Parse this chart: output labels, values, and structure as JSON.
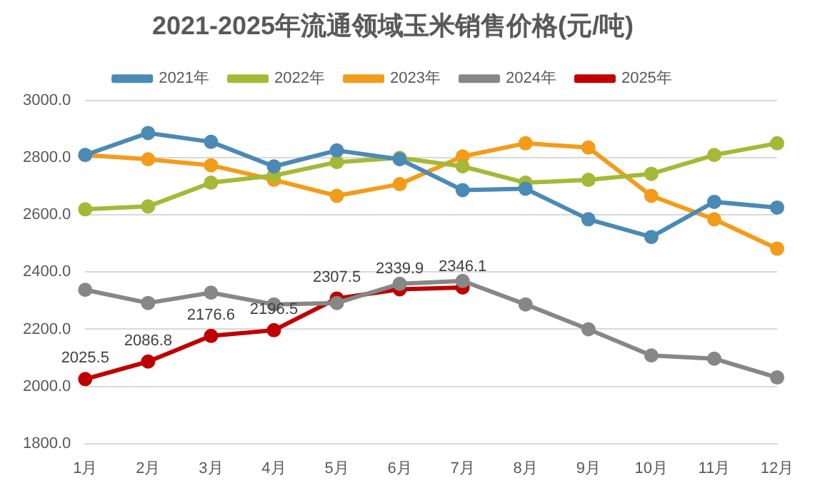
{
  "chart_data": {
    "type": "line",
    "title": "2021-2025年流通领域玉米销售价格(元/吨)",
    "categories": [
      "1月",
      "2月",
      "3月",
      "4月",
      "5月",
      "6月",
      "7月",
      "8月",
      "9月",
      "10月",
      "11月",
      "12月"
    ],
    "series": [
      {
        "name": "2021年",
        "color": "#4a8ab5",
        "values": [
          2810,
          2887,
          2856,
          2770,
          2826,
          2795,
          2687,
          2692,
          2585,
          2523,
          2646,
          2626
        ]
      },
      {
        "name": "2022年",
        "color": "#a5b936",
        "values": [
          2620,
          2630,
          2713,
          2738,
          2785,
          2800,
          2770,
          2713,
          2723,
          2744,
          2810,
          2851
        ]
      },
      {
        "name": "2023年",
        "color": "#f39c1a",
        "values": [
          2810,
          2795,
          2774,
          2723,
          2667,
          2708,
          2805,
          2851,
          2836,
          2667,
          2585,
          2482
        ]
      },
      {
        "name": "2024年",
        "color": "#878787",
        "values": [
          2338,
          2292,
          2328,
          2287,
          2292,
          2359,
          2369,
          2287,
          2200,
          2108,
          2097,
          2031
        ]
      },
      {
        "name": "2025年",
        "color": "#c00000",
        "values": [
          2025.5,
          2086.8,
          2176.6,
          2196.5,
          2307.5,
          2339.9,
          2346.1,
          null,
          null,
          null,
          null,
          null
        ],
        "value_labels": [
          "2025.5",
          "2086.8",
          "2176.6",
          "2196.5",
          "2307.5",
          "2339.9",
          "2346.1",
          null,
          null,
          null,
          null,
          null
        ]
      }
    ],
    "ylim": [
      1800,
      3000
    ],
    "yticks": [
      {
        "value": 1800,
        "label": "1800.0"
      },
      {
        "value": 2000,
        "label": "2000.0"
      },
      {
        "value": 2200,
        "label": "2200.0"
      },
      {
        "value": 2400,
        "label": "2400.0"
      },
      {
        "value": 2600,
        "label": "2600.0"
      },
      {
        "value": 2800,
        "label": "2800.0"
      },
      {
        "value": 3000,
        "label": "3000.0"
      }
    ],
    "grid": "y",
    "legend": "top",
    "marker": "circle",
    "line_style": "solid"
  }
}
